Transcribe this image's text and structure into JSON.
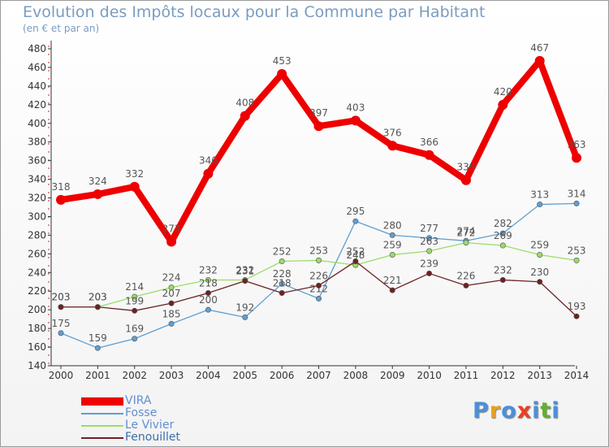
{
  "chart_data": {
    "type": "line",
    "title": "Evolution des Impôts locaux pour la Commune par Habitant",
    "subtitle": "(en € et par an)",
    "x": [
      "2000",
      "2001",
      "2002",
      "2003",
      "2004",
      "2005",
      "2006",
      "2007",
      "2008",
      "2009",
      "2010",
      "2011",
      "2012",
      "2013",
      "2014"
    ],
    "ylim": [
      140,
      480
    ],
    "yticks": [
      140,
      160,
      180,
      200,
      220,
      240,
      260,
      280,
      300,
      320,
      340,
      360,
      380,
      400,
      420,
      440,
      460,
      480
    ],
    "grid": false,
    "legend_position": "bottom-left",
    "series": [
      {
        "name": "VIRA",
        "color": "#ee0000",
        "values": [
          318,
          324,
          332,
          273,
          346,
          408,
          453,
          397,
          403,
          376,
          366,
          339,
          420,
          467,
          363
        ]
      },
      {
        "name": "Fosse",
        "color": "#5f9fd2",
        "values": [
          175,
          159,
          169,
          185,
          200,
          192,
          228,
          212,
          295,
          280,
          277,
          274,
          282,
          313,
          314
        ]
      },
      {
        "name": "Le Vivier",
        "color": "#99dd66",
        "values": [
          203,
          203,
          214,
          224,
          232,
          232,
          252,
          253,
          248,
          259,
          263,
          272,
          269,
          259,
          253
        ]
      },
      {
        "name": "Fenouillet",
        "color": "#6b2222",
        "values": [
          203,
          203,
          199,
          207,
          218,
          231,
          218,
          226,
          252,
          221,
          239,
          226,
          232,
          230,
          193
        ]
      }
    ]
  },
  "logo": {
    "letters": [
      "P",
      "r",
      "o",
      "x",
      "i",
      "t",
      "i"
    ],
    "colors": [
      "#4a90d9",
      "#e8a020",
      "#4a90d9",
      "#e84020",
      "#4a90d9",
      "#60b030",
      "#4a90d9"
    ]
  }
}
